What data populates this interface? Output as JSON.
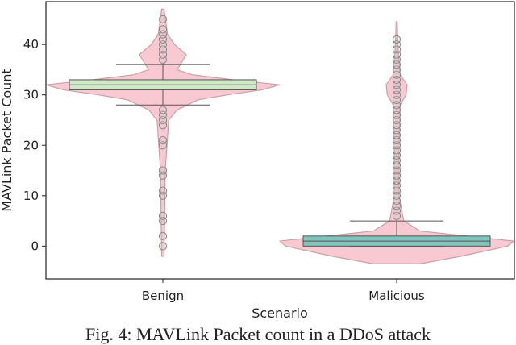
{
  "chart_data": {
    "type": "violin-box",
    "title": "",
    "xlabel": "Scenario",
    "ylabel": "MAVLink Packet Count",
    "categories": [
      "Benign",
      "Malicious"
    ],
    "ylim": [
      -6.5,
      48.5
    ],
    "yticks": [
      0,
      10,
      20,
      30,
      40
    ],
    "grid": false,
    "colors": {
      "violin": "#f9c9d1",
      "violin_edge": "#c9a0a8",
      "box_benign": "#cfe8c6",
      "box_malicious": "#7fc5bd",
      "whisker": "#555555"
    },
    "boxes": [
      {
        "category": "Benign",
        "q1": 31,
        "median": 32,
        "q3": 33,
        "whisker_low": 28,
        "whisker_high": 36
      },
      {
        "category": "Malicious",
        "q1": 0,
        "median": 1,
        "q3": 2,
        "whisker_low": 0,
        "whisker_high": 5
      }
    ],
    "violins": [
      {
        "category": "Benign",
        "profile": [
          [
            -2,
            0.01
          ],
          [
            5,
            0.015
          ],
          [
            15,
            0.02
          ],
          [
            25,
            0.05
          ],
          [
            27,
            0.12
          ],
          [
            29,
            0.3
          ],
          [
            30,
            0.55
          ],
          [
            31,
            0.85
          ],
          [
            32,
            1.0
          ],
          [
            33,
            0.6
          ],
          [
            34,
            0.25
          ],
          [
            35,
            0.12
          ],
          [
            36,
            0.15
          ],
          [
            38,
            0.2
          ],
          [
            40,
            0.1
          ],
          [
            42,
            0.04
          ],
          [
            47,
            0.01
          ]
        ]
      },
      {
        "category": "Malicious",
        "profile": [
          [
            -3.5,
            0.2
          ],
          [
            -2,
            0.55
          ],
          [
            0,
            0.95
          ],
          [
            1,
            1.0
          ],
          [
            2,
            0.6
          ],
          [
            3,
            0.2
          ],
          [
            5,
            0.06
          ],
          [
            10,
            0.02
          ],
          [
            20,
            0.02
          ],
          [
            28,
            0.03
          ],
          [
            30,
            0.08
          ],
          [
            32,
            0.09
          ],
          [
            34,
            0.03
          ],
          [
            40,
            0.01
          ],
          [
            44.5,
            0.005
          ]
        ]
      }
    ],
    "outliers": [
      {
        "category": "Benign",
        "values": [
          0,
          2,
          5,
          6,
          10,
          11,
          14,
          15,
          20,
          21,
          24,
          25,
          26,
          27,
          37,
          38,
          39,
          40,
          41,
          42,
          43,
          45
        ]
      },
      {
        "category": "Malicious",
        "values": [
          6,
          7,
          8,
          9,
          10,
          11,
          12,
          13,
          14,
          15,
          16,
          17,
          18,
          19,
          20,
          21,
          22,
          23,
          24,
          25,
          26,
          27,
          28,
          29,
          30,
          31,
          32,
          33,
          34,
          35,
          36,
          37,
          38,
          39,
          40,
          41
        ]
      }
    ]
  },
  "caption": "Fig. 4: MAVLink Packet count in a DDoS attack"
}
